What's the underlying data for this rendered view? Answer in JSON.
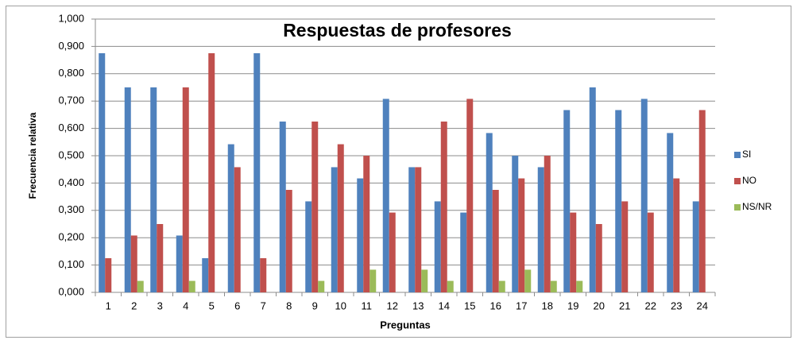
{
  "chart_data": {
    "type": "bar",
    "title": "Respuestas de profesores",
    "xlabel": "Preguntas",
    "ylabel": "Frecuencia relativa",
    "categories": [
      "1",
      "2",
      "3",
      "4",
      "5",
      "6",
      "7",
      "8",
      "9",
      "10",
      "11",
      "12",
      "13",
      "14",
      "15",
      "16",
      "17",
      "18",
      "19",
      "20",
      "21",
      "22",
      "23",
      "24"
    ],
    "series": [
      {
        "name": "SI",
        "color": "#4f81bd",
        "values": [
          0.875,
          0.75,
          0.75,
          0.208,
          0.125,
          0.542,
          0.875,
          0.625,
          0.333,
          0.458,
          0.417,
          0.708,
          0.458,
          0.333,
          0.292,
          0.583,
          0.5,
          0.458,
          0.667,
          0.75,
          0.667,
          0.708,
          0.583,
          0.333
        ]
      },
      {
        "name": "NO",
        "color": "#c0504d",
        "values": [
          0.125,
          0.208,
          0.25,
          0.75,
          0.875,
          0.458,
          0.125,
          0.375,
          0.625,
          0.542,
          0.5,
          0.292,
          0.458,
          0.625,
          0.708,
          0.375,
          0.417,
          0.5,
          0.292,
          0.25,
          0.333,
          0.292,
          0.417,
          0.667
        ]
      },
      {
        "name": "NS/NR",
        "color": "#9bbb59",
        "values": [
          0,
          0.042,
          0,
          0.042,
          0,
          0,
          0,
          0,
          0.042,
          0,
          0.083,
          0,
          0.083,
          0.042,
          0,
          0.042,
          0.083,
          0.042,
          0.042,
          0,
          0,
          0,
          0,
          0
        ]
      }
    ],
    "ylim": [
      0,
      1
    ],
    "yticks": [
      {
        "value": 0,
        "label": "0,000"
      },
      {
        "value": 0.1,
        "label": "0,100"
      },
      {
        "value": 0.2,
        "label": "0,200"
      },
      {
        "value": 0.3,
        "label": "0,300"
      },
      {
        "value": 0.4,
        "label": "0,400"
      },
      {
        "value": 0.5,
        "label": "0,500"
      },
      {
        "value": 0.6,
        "label": "0,600"
      },
      {
        "value": 0.7,
        "label": "0,700"
      },
      {
        "value": 0.8,
        "label": "0,800"
      },
      {
        "value": 0.9,
        "label": "0,900"
      },
      {
        "value": 1,
        "label": "1,000"
      }
    ],
    "grid": true,
    "legend": "right"
  }
}
